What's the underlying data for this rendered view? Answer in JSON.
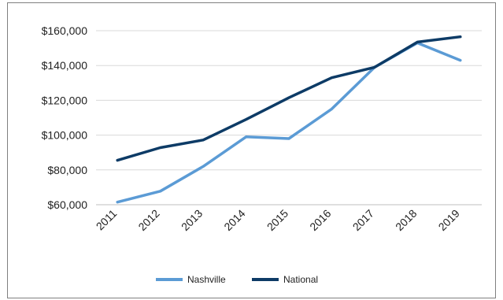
{
  "chart_data": {
    "type": "line",
    "x": [
      "2011",
      "2012",
      "2013",
      "2014",
      "2015",
      "2016",
      "2017",
      "2018",
      "2019"
    ],
    "series": [
      {
        "name": "Nashville",
        "color": "#5b9bd5",
        "values": [
          61500,
          67800,
          82000,
          99000,
          98000,
          115000,
          139000,
          153000,
          143000
        ]
      },
      {
        "name": "National",
        "color": "#0d3b66",
        "values": [
          85500,
          92800,
          97200,
          109000,
          121500,
          133000,
          139000,
          153500,
          156500
        ]
      }
    ],
    "ylim": [
      60000,
      160000
    ],
    "yticks": [
      60000,
      80000,
      100000,
      120000,
      140000,
      160000
    ],
    "ytick_labels": [
      "$60,000",
      "$80,000",
      "$100,000",
      "$120,000",
      "$140,000",
      "$160,000"
    ],
    "grid": true,
    "legend_position": "bottom",
    "title": "",
    "xlabel": "",
    "ylabel": ""
  }
}
